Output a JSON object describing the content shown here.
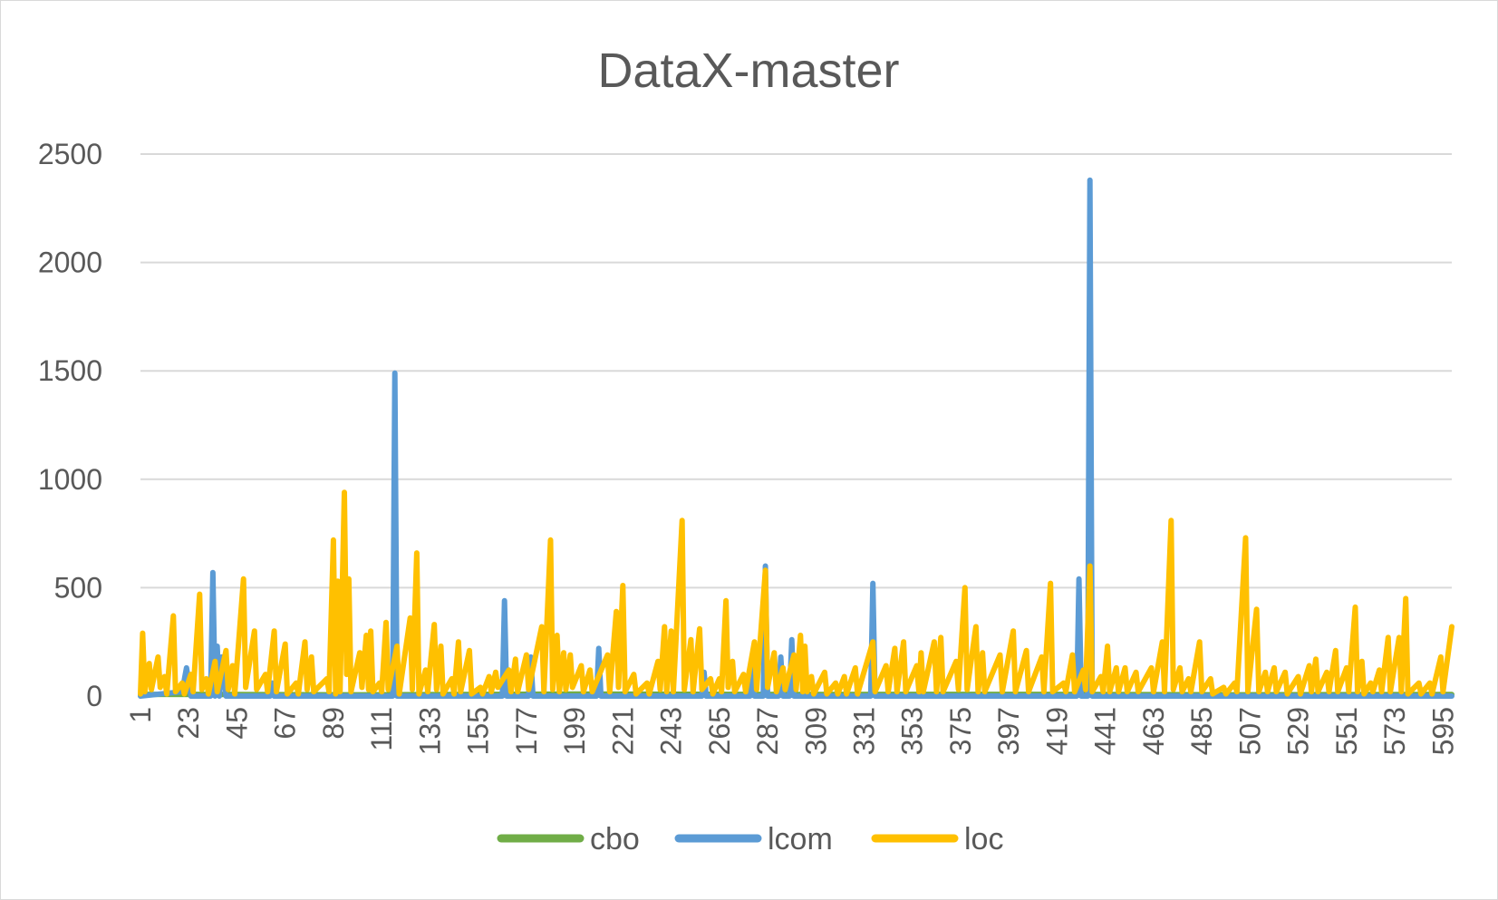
{
  "chart_data": {
    "type": "line",
    "title": "DataX-master",
    "xlabel": "",
    "ylabel": "",
    "ylim": [
      0,
      2500
    ],
    "yticks": [
      0,
      500,
      1000,
      1500,
      2000,
      2500
    ],
    "xrange": [
      1,
      599
    ],
    "xticks": [
      1,
      23,
      45,
      67,
      89,
      111,
      133,
      155,
      177,
      199,
      221,
      243,
      265,
      287,
      309,
      331,
      353,
      375,
      397,
      419,
      441,
      463,
      485,
      507,
      529,
      551,
      573,
      595
    ],
    "grid": true,
    "legend_position": "bottom",
    "series": [
      {
        "name": "cbo",
        "color": "#70ad47",
        "points": [
          [
            1,
            8
          ],
          [
            100,
            6
          ],
          [
            200,
            9
          ],
          [
            300,
            7
          ],
          [
            400,
            8
          ],
          [
            500,
            6
          ],
          [
            599,
            7
          ]
        ]
      },
      {
        "name": "lcom",
        "color": "#5b9bd5",
        "points": [
          [
            1,
            0
          ],
          [
            20,
            20
          ],
          [
            22,
            130
          ],
          [
            24,
            0
          ],
          [
            33,
            0
          ],
          [
            34,
            570
          ],
          [
            35,
            0
          ],
          [
            36,
            230
          ],
          [
            37,
            0
          ],
          [
            38,
            180
          ],
          [
            40,
            0
          ],
          [
            60,
            0
          ],
          [
            61,
            60
          ],
          [
            62,
            0
          ],
          [
            116,
            0
          ],
          [
            117,
            1490
          ],
          [
            118,
            0
          ],
          [
            166,
            0
          ],
          [
            167,
            440
          ],
          [
            168,
            0
          ],
          [
            178,
            0
          ],
          [
            179,
            180
          ],
          [
            180,
            0
          ],
          [
            209,
            0
          ],
          [
            210,
            220
          ],
          [
            211,
            0
          ],
          [
            257,
            0
          ],
          [
            258,
            110
          ],
          [
            259,
            0
          ],
          [
            279,
            0
          ],
          [
            280,
            180
          ],
          [
            281,
            0
          ],
          [
            285,
            0
          ],
          [
            286,
            600
          ],
          [
            287,
            0
          ],
          [
            292,
            0
          ],
          [
            293,
            180
          ],
          [
            294,
            0
          ],
          [
            297,
            0
          ],
          [
            298,
            260
          ],
          [
            299,
            0
          ],
          [
            334,
            0
          ],
          [
            335,
            520
          ],
          [
            336,
            0
          ],
          [
            428,
            0
          ],
          [
            429,
            540
          ],
          [
            430,
            0
          ],
          [
            433,
            0
          ],
          [
            434,
            2380
          ],
          [
            435,
            0
          ],
          [
            599,
            0
          ]
        ]
      },
      {
        "name": "loc",
        "color": "#ffc000",
        "points": [
          [
            1,
            10
          ],
          [
            2,
            290
          ],
          [
            3,
            20
          ],
          [
            5,
            150
          ],
          [
            6,
            30
          ],
          [
            9,
            180
          ],
          [
            10,
            40
          ],
          [
            12,
            90
          ],
          [
            13,
            10
          ],
          [
            16,
            370
          ],
          [
            17,
            20
          ],
          [
            20,
            60
          ],
          [
            21,
            10
          ],
          [
            24,
            100
          ],
          [
            25,
            20
          ],
          [
            28,
            470
          ],
          [
            29,
            30
          ],
          [
            31,
            80
          ],
          [
            32,
            10
          ],
          [
            35,
            160
          ],
          [
            36,
            20
          ],
          [
            40,
            210
          ],
          [
            41,
            30
          ],
          [
            43,
            140
          ],
          [
            44,
            10
          ],
          [
            48,
            540
          ],
          [
            49,
            40
          ],
          [
            53,
            300
          ],
          [
            54,
            30
          ],
          [
            58,
            100
          ],
          [
            59,
            20
          ],
          [
            62,
            300
          ],
          [
            63,
            20
          ],
          [
            67,
            240
          ],
          [
            68,
            10
          ],
          [
            72,
            60
          ],
          [
            73,
            10
          ],
          [
            76,
            250
          ],
          [
            77,
            30
          ],
          [
            79,
            180
          ],
          [
            80,
            20
          ],
          [
            86,
            80
          ],
          [
            87,
            20
          ],
          [
            89,
            720
          ],
          [
            90,
            10
          ],
          [
            91,
            530
          ],
          [
            92,
            20
          ],
          [
            94,
            940
          ],
          [
            95,
            100
          ],
          [
            96,
            540
          ],
          [
            97,
            20
          ],
          [
            101,
            200
          ],
          [
            102,
            40
          ],
          [
            104,
            280
          ],
          [
            105,
            30
          ],
          [
            106,
            300
          ],
          [
            107,
            20
          ],
          [
            110,
            60
          ],
          [
            111,
            20
          ],
          [
            113,
            340
          ],
          [
            114,
            30
          ],
          [
            118,
            230
          ],
          [
            119,
            10
          ],
          [
            124,
            360
          ],
          [
            125,
            30
          ],
          [
            127,
            660
          ],
          [
            128,
            10
          ],
          [
            131,
            120
          ],
          [
            132,
            20
          ],
          [
            135,
            330
          ],
          [
            136,
            30
          ],
          [
            138,
            230
          ],
          [
            139,
            10
          ],
          [
            143,
            80
          ],
          [
            144,
            10
          ],
          [
            146,
            250
          ],
          [
            147,
            20
          ],
          [
            151,
            210
          ],
          [
            152,
            10
          ],
          [
            156,
            40
          ],
          [
            157,
            10
          ],
          [
            160,
            90
          ],
          [
            161,
            20
          ],
          [
            163,
            110
          ],
          [
            164,
            40
          ],
          [
            169,
            120
          ],
          [
            170,
            20
          ],
          [
            172,
            170
          ],
          [
            173,
            20
          ],
          [
            177,
            190
          ],
          [
            178,
            30
          ],
          [
            184,
            320
          ],
          [
            185,
            20
          ],
          [
            188,
            720
          ],
          [
            189,
            30
          ],
          [
            191,
            280
          ],
          [
            192,
            20
          ],
          [
            194,
            200
          ],
          [
            195,
            30
          ],
          [
            197,
            190
          ],
          [
            198,
            40
          ],
          [
            202,
            140
          ],
          [
            203,
            20
          ],
          [
            206,
            120
          ],
          [
            207,
            20
          ],
          [
            214,
            190
          ],
          [
            215,
            20
          ],
          [
            218,
            390
          ],
          [
            219,
            40
          ],
          [
            221,
            510
          ],
          [
            222,
            20
          ],
          [
            226,
            100
          ],
          [
            227,
            10
          ],
          [
            232,
            60
          ],
          [
            233,
            10
          ],
          [
            237,
            160
          ],
          [
            238,
            30
          ],
          [
            240,
            320
          ],
          [
            241,
            20
          ],
          [
            243,
            300
          ],
          [
            244,
            20
          ],
          [
            248,
            810
          ],
          [
            249,
            30
          ],
          [
            252,
            260
          ],
          [
            253,
            20
          ],
          [
            256,
            310
          ],
          [
            257,
            30
          ],
          [
            261,
            80
          ],
          [
            262,
            10
          ],
          [
            265,
            80
          ],
          [
            266,
            20
          ],
          [
            268,
            440
          ],
          [
            269,
            40
          ],
          [
            271,
            160
          ],
          [
            272,
            20
          ],
          [
            276,
            100
          ],
          [
            277,
            20
          ],
          [
            281,
            250
          ],
          [
            282,
            30
          ],
          [
            286,
            580
          ],
          [
            287,
            40
          ],
          [
            290,
            200
          ],
          [
            291,
            20
          ],
          [
            294,
            130
          ],
          [
            295,
            30
          ],
          [
            299,
            190
          ],
          [
            300,
            30
          ],
          [
            302,
            280
          ],
          [
            303,
            20
          ],
          [
            304,
            230
          ],
          [
            305,
            20
          ],
          [
            307,
            90
          ],
          [
            308,
            10
          ],
          [
            313,
            110
          ],
          [
            314,
            10
          ],
          [
            318,
            60
          ],
          [
            319,
            10
          ],
          [
            322,
            90
          ],
          [
            323,
            10
          ],
          [
            327,
            130
          ],
          [
            328,
            10
          ],
          [
            335,
            250
          ],
          [
            336,
            20
          ],
          [
            341,
            140
          ],
          [
            342,
            20
          ],
          [
            345,
            220
          ],
          [
            346,
            20
          ],
          [
            349,
            250
          ],
          [
            350,
            20
          ],
          [
            355,
            140
          ],
          [
            356,
            20
          ],
          [
            357,
            200
          ],
          [
            358,
            20
          ],
          [
            363,
            250
          ],
          [
            364,
            20
          ],
          [
            366,
            270
          ],
          [
            367,
            20
          ],
          [
            373,
            160
          ],
          [
            374,
            30
          ],
          [
            377,
            500
          ],
          [
            378,
            30
          ],
          [
            382,
            320
          ],
          [
            383,
            20
          ],
          [
            385,
            200
          ],
          [
            386,
            20
          ],
          [
            393,
            190
          ],
          [
            394,
            20
          ],
          [
            399,
            300
          ],
          [
            400,
            20
          ],
          [
            405,
            210
          ],
          [
            406,
            20
          ],
          [
            412,
            180
          ],
          [
            413,
            20
          ],
          [
            416,
            520
          ],
          [
            417,
            20
          ],
          [
            422,
            60
          ],
          [
            423,
            20
          ],
          [
            426,
            190
          ],
          [
            427,
            20
          ],
          [
            431,
            120
          ],
          [
            432,
            30
          ],
          [
            434,
            600
          ],
          [
            435,
            20
          ],
          [
            439,
            90
          ],
          [
            440,
            20
          ],
          [
            442,
            230
          ],
          [
            443,
            20
          ],
          [
            446,
            130
          ],
          [
            447,
            20
          ],
          [
            450,
            130
          ],
          [
            451,
            20
          ],
          [
            455,
            110
          ],
          [
            456,
            20
          ],
          [
            462,
            130
          ],
          [
            463,
            20
          ],
          [
            467,
            250
          ],
          [
            468,
            20
          ],
          [
            471,
            810
          ],
          [
            472,
            30
          ],
          [
            475,
            130
          ],
          [
            476,
            20
          ],
          [
            479,
            80
          ],
          [
            480,
            20
          ],
          [
            484,
            250
          ],
          [
            485,
            20
          ],
          [
            489,
            80
          ],
          [
            490,
            10
          ],
          [
            495,
            40
          ],
          [
            496,
            10
          ],
          [
            500,
            60
          ],
          [
            501,
            20
          ],
          [
            505,
            730
          ],
          [
            506,
            20
          ],
          [
            510,
            400
          ],
          [
            511,
            20
          ],
          [
            514,
            110
          ],
          [
            515,
            20
          ],
          [
            518,
            130
          ],
          [
            519,
            20
          ],
          [
            523,
            110
          ],
          [
            524,
            10
          ],
          [
            529,
            90
          ],
          [
            530,
            10
          ],
          [
            534,
            140
          ],
          [
            535,
            20
          ],
          [
            537,
            170
          ],
          [
            538,
            20
          ],
          [
            542,
            110
          ],
          [
            543,
            20
          ],
          [
            546,
            210
          ],
          [
            547,
            20
          ],
          [
            551,
            130
          ],
          [
            552,
            20
          ],
          [
            555,
            410
          ],
          [
            556,
            20
          ],
          [
            558,
            160
          ],
          [
            559,
            10
          ],
          [
            562,
            60
          ],
          [
            563,
            20
          ],
          [
            566,
            120
          ],
          [
            567,
            20
          ],
          [
            570,
            270
          ],
          [
            571,
            20
          ],
          [
            575,
            270
          ],
          [
            576,
            20
          ],
          [
            578,
            450
          ],
          [
            579,
            10
          ],
          [
            584,
            60
          ],
          [
            585,
            10
          ],
          [
            589,
            60
          ],
          [
            590,
            10
          ],
          [
            594,
            180
          ],
          [
            595,
            20
          ],
          [
            599,
            320
          ]
        ]
      }
    ]
  }
}
